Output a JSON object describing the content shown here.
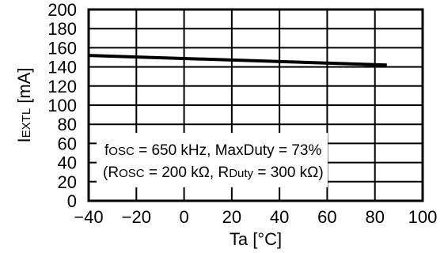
{
  "chart_data": {
    "type": "line",
    "title": "",
    "xlabel": "Ta [°C]",
    "ylabel": {
      "main": "I",
      "sub": "EXTL",
      "unit": " [mA]"
    },
    "xlim": [
      -40,
      100
    ],
    "ylim": [
      0,
      200
    ],
    "x_ticks": [
      -40,
      -20,
      0,
      20,
      40,
      60,
      80,
      100
    ],
    "x_tick_labels": [
      "−40",
      "−20",
      "0",
      "20",
      "40",
      "60",
      "80",
      "100"
    ],
    "y_ticks": [
      0,
      20,
      40,
      60,
      80,
      100,
      120,
      140,
      160,
      180,
      200
    ],
    "grid": true,
    "series": [
      {
        "name": "",
        "x": [
          -40,
          85
        ],
        "y": [
          152,
          142
        ],
        "color": "#000000"
      }
    ],
    "annotation": {
      "line1": {
        "f": "f",
        "f_sub": "OSC",
        "rest": " = 650 kHz, MaxDuty = 73%"
      },
      "line2": {
        "open": "(R",
        "r1_sub": "OSC",
        "mid": " = 200 kΩ, R",
        "r2_sub": "Duty",
        "end": " = 300 kΩ)"
      }
    }
  }
}
